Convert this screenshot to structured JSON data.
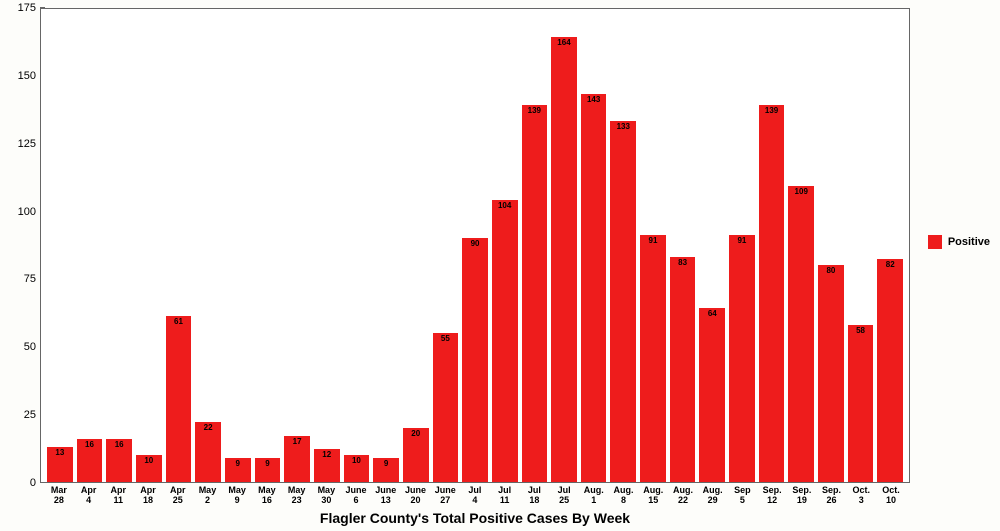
{
  "chart": {
    "type": "bar",
    "title": "Flagler County's Total Positive Cases By Week",
    "title_fontsize": 14,
    "label_fontsize": 9,
    "value_label_fontsize": 8,
    "ylim": [
      0,
      175
    ],
    "ytick_step": 25,
    "yticks": [
      0,
      25,
      50,
      75,
      100,
      125,
      150,
      175
    ],
    "background_color": "#ffffff",
    "axis_color": "#666666",
    "bar_color": "#ee1c1c",
    "bar_width": 0.78,
    "categories": [
      "Mar 28",
      "Apr 4",
      "Apr 11",
      "Apr 18",
      "Apr 25",
      "May 2",
      "May 9",
      "May 16",
      "May 23",
      "May 30",
      "June 6",
      "June 13",
      "June 20",
      "June 27",
      "Jul 4",
      "Jul 11",
      "Jul 18",
      "Jul 25",
      "Aug. 1",
      "Aug. 8",
      "Aug. 15",
      "Aug. 22",
      "Aug. 29",
      "Sep 5",
      "Sep. 12",
      "Sep. 19",
      "Sep. 26",
      "Oct. 3",
      "Oct. 10"
    ],
    "values": [
      13,
      16,
      16,
      10,
      61,
      22,
      9,
      9,
      17,
      12,
      10,
      9,
      20,
      55,
      90,
      104,
      139,
      164,
      143,
      133,
      91,
      83,
      64,
      91,
      139,
      109,
      80,
      58,
      82
    ],
    "legend": {
      "label": "Positive",
      "color": "#ee1c1c"
    }
  }
}
